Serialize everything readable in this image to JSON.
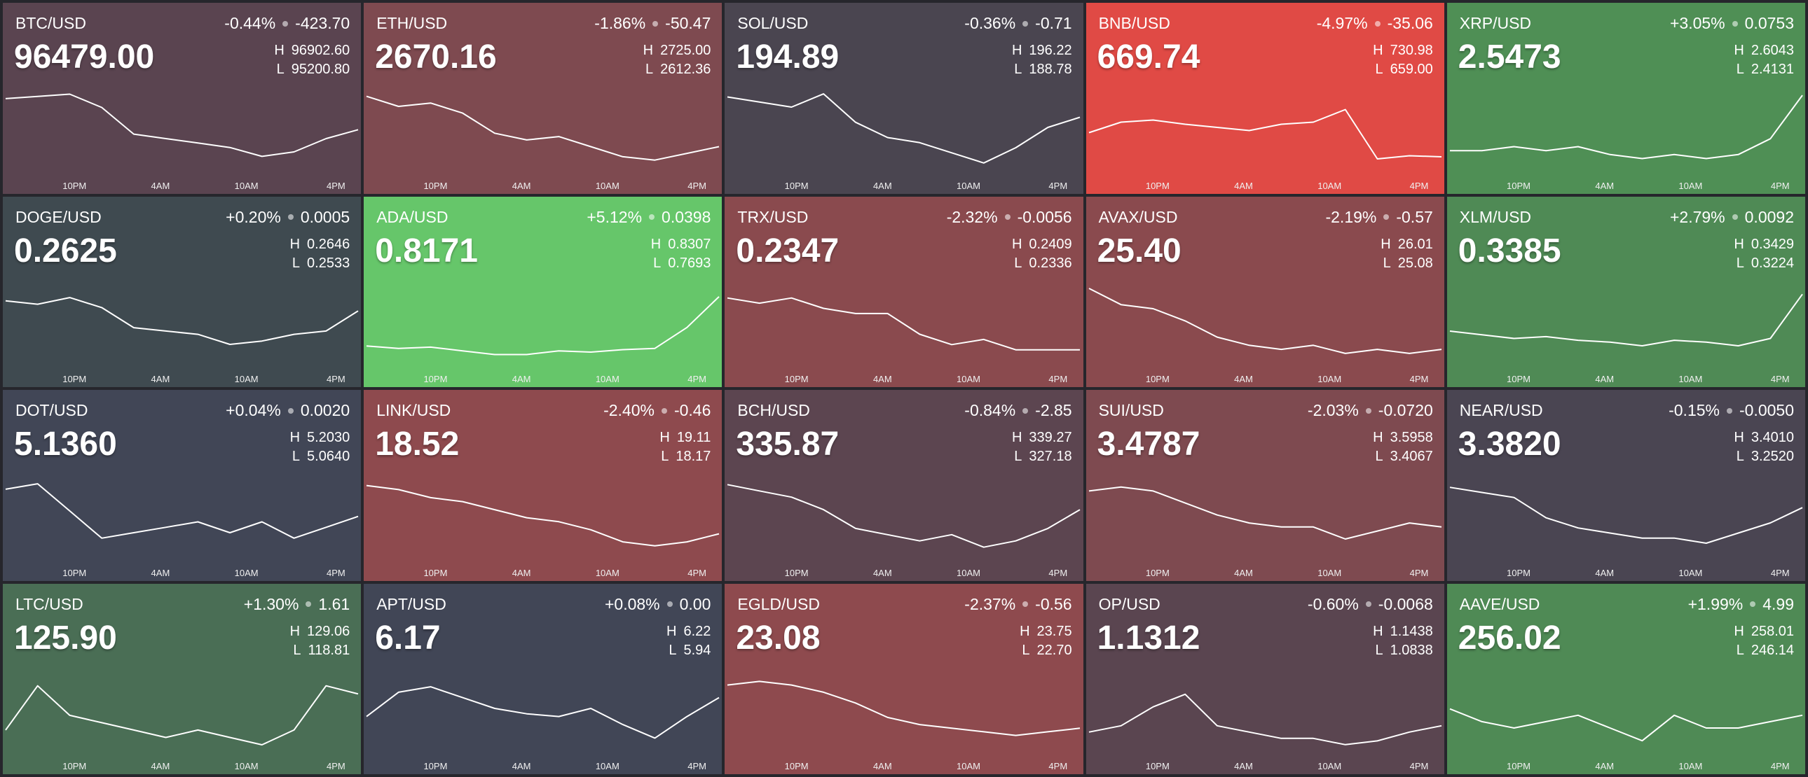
{
  "labels": {
    "high": "H",
    "low": "L"
  },
  "time_labels": [
    "10PM",
    "4AM",
    "10AM",
    "4PM"
  ],
  "tiles": [
    {
      "pair": "BTC/USD",
      "change_pct": "-0.44%",
      "change": "-423.70",
      "price": "96479.00",
      "high": "96902.60",
      "low": "95200.80",
      "color": "#5a4450",
      "sparkline": [
        96700,
        96750,
        96800,
        96500,
        95900,
        95800,
        95700,
        95600,
        95400,
        95500,
        95800,
        96000
      ]
    },
    {
      "pair": "ETH/USD",
      "change_pct": "-1.86%",
      "change": "-50.47",
      "price": "2670.16",
      "high": "2725.00",
      "low": "2612.36",
      "color": "#7e4a50",
      "sparkline": [
        2715,
        2700,
        2705,
        2690,
        2660,
        2650,
        2655,
        2640,
        2625,
        2620,
        2630,
        2640
      ]
    },
    {
      "pair": "SOL/USD",
      "change_pct": "-0.36%",
      "change": "-0.71",
      "price": "194.89",
      "high": "196.22",
      "low": "188.78",
      "color": "#4a4550",
      "sparkline": [
        195.5,
        195,
        194.5,
        195.8,
        193,
        191.5,
        191,
        190,
        189,
        190.5,
        192.5,
        193.5
      ]
    },
    {
      "pair": "BNB/USD",
      "change_pct": "-4.97%",
      "change": "-35.06",
      "price": "669.74",
      "high": "730.98",
      "low": "659.00",
      "color": "#e04a45",
      "sparkline": [
        690,
        700,
        702,
        698,
        695,
        692,
        698,
        700,
        712,
        665,
        668,
        667
      ]
    },
    {
      "pair": "XRP/USD",
      "change_pct": "+3.05%",
      "change": "0.0753",
      "price": "2.5473",
      "high": "2.6043",
      "low": "2.4131",
      "color": "#4f8f55",
      "sparkline": [
        2.45,
        2.45,
        2.46,
        2.45,
        2.46,
        2.44,
        2.43,
        2.44,
        2.43,
        2.44,
        2.48,
        2.59
      ]
    },
    {
      "pair": "DOGE/USD",
      "change_pct": "+0.20%",
      "change": "0.0005",
      "price": "0.2625",
      "high": "0.2646",
      "low": "0.2533",
      "color": "#3f4a50",
      "sparkline": [
        0.262,
        0.2615,
        0.2625,
        0.261,
        0.258,
        0.2575,
        0.257,
        0.2555,
        0.256,
        0.257,
        0.2575,
        0.2605
      ]
    },
    {
      "pair": "ADA/USD",
      "change_pct": "+5.12%",
      "change": "0.0398",
      "price": "0.8171",
      "high": "0.8307",
      "low": "0.7693",
      "color": "#66c66a",
      "sparkline": [
        0.78,
        0.778,
        0.779,
        0.776,
        0.773,
        0.773,
        0.776,
        0.775,
        0.777,
        0.778,
        0.795,
        0.82
      ]
    },
    {
      "pair": "TRX/USD",
      "change_pct": "-2.32%",
      "change": "-0.0056",
      "price": "0.2347",
      "high": "0.2409",
      "low": "0.2336",
      "color": "#8a4a4e",
      "sparkline": [
        0.2395,
        0.239,
        0.2395,
        0.2385,
        0.238,
        0.238,
        0.236,
        0.235,
        0.2355,
        0.2345,
        0.2345,
        0.2345
      ]
    },
    {
      "pair": "AVAX/USD",
      "change_pct": "-2.19%",
      "change": "-0.57",
      "price": "25.40",
      "high": "26.01",
      "low": "25.08",
      "color": "#8a4a4e",
      "sparkline": [
        25.95,
        25.75,
        25.7,
        25.55,
        25.35,
        25.25,
        25.2,
        25.25,
        25.15,
        25.2,
        25.15,
        25.2
      ]
    },
    {
      "pair": "XLM/USD",
      "change_pct": "+2.79%",
      "change": "0.0092",
      "price": "0.3385",
      "high": "0.3429",
      "low": "0.3224",
      "color": "#4f8a55",
      "sparkline": [
        0.33,
        0.329,
        0.328,
        0.3285,
        0.3275,
        0.327,
        0.326,
        0.3275,
        0.327,
        0.326,
        0.328,
        0.34
      ]
    },
    {
      "pair": "DOT/USD",
      "change_pct": "+0.04%",
      "change": "0.0020",
      "price": "5.1360",
      "high": "5.2030",
      "low": "5.0640",
      "color": "#414656",
      "sparkline": [
        5.18,
        5.19,
        5.14,
        5.09,
        5.1,
        5.11,
        5.12,
        5.1,
        5.12,
        5.09,
        5.11,
        5.13
      ]
    },
    {
      "pair": "LINK/USD",
      "change_pct": "-2.40%",
      "change": "-0.46",
      "price": "18.52",
      "high": "19.11",
      "low": "18.17",
      "color": "#8e4a4e",
      "sparkline": [
        19,
        18.95,
        18.85,
        18.8,
        18.7,
        18.6,
        18.55,
        18.45,
        18.3,
        18.25,
        18.3,
        18.4
      ]
    },
    {
      "pair": "BCH/USD",
      "change_pct": "-0.84%",
      "change": "-2.85",
      "price": "335.87",
      "high": "339.27",
      "low": "327.18",
      "color": "#5c4550",
      "sparkline": [
        338,
        337,
        336,
        334,
        331,
        330,
        329,
        330,
        328,
        329,
        331,
        334
      ]
    },
    {
      "pair": "SUI/USD",
      "change_pct": "-2.03%",
      "change": "-0.0720",
      "price": "3.4787",
      "high": "3.5958",
      "low": "3.4067",
      "color": "#7e4a50",
      "sparkline": [
        3.56,
        3.57,
        3.56,
        3.53,
        3.5,
        3.48,
        3.47,
        3.47,
        3.44,
        3.46,
        3.48,
        3.47
      ]
    },
    {
      "pair": "NEAR/USD",
      "change_pct": "-0.15%",
      "change": "-0.0050",
      "price": "3.3820",
      "high": "3.4010",
      "low": "3.2520",
      "color": "#4a4552",
      "sparkline": [
        3.38,
        3.37,
        3.36,
        3.32,
        3.3,
        3.29,
        3.28,
        3.28,
        3.27,
        3.29,
        3.31,
        3.34
      ]
    },
    {
      "pair": "LTC/USD",
      "change_pct": "+1.30%",
      "change": "1.61",
      "price": "125.90",
      "high": "129.06",
      "low": "118.81",
      "color": "#4a6e55",
      "sparkline": [
        121,
        127,
        123,
        122,
        121,
        120,
        121,
        120,
        119,
        121,
        127,
        125.9
      ]
    },
    {
      "pair": "APT/USD",
      "change_pct": "+0.08%",
      "change": "0.00",
      "price": "6.17",
      "high": "6.22",
      "low": "5.94",
      "color": "#414656",
      "sparkline": [
        6.05,
        6.14,
        6.16,
        6.12,
        6.08,
        6.06,
        6.05,
        6.08,
        6.02,
        5.97,
        6.05,
        6.12
      ]
    },
    {
      "pair": "EGLD/USD",
      "change_pct": "-2.37%",
      "change": "-0.56",
      "price": "23.08",
      "high": "23.75",
      "low": "22.70",
      "color": "#8e4a4e",
      "sparkline": [
        23.55,
        23.6,
        23.55,
        23.45,
        23.3,
        23.1,
        23,
        22.95,
        22.9,
        22.85,
        22.9,
        22.95
      ]
    },
    {
      "pair": "OP/USD",
      "change_pct": "-0.60%",
      "change": "-0.0068",
      "price": "1.1312",
      "high": "1.1438",
      "low": "1.0838",
      "color": "#5a4550",
      "sparkline": [
        1.095,
        1.1,
        1.115,
        1.125,
        1.1,
        1.095,
        1.09,
        1.09,
        1.085,
        1.088,
        1.095,
        1.1
      ]
    },
    {
      "pair": "AAVE/USD",
      "change_pct": "+1.99%",
      "change": "4.99",
      "price": "256.02",
      "high": "258.01",
      "low": "246.14",
      "color": "#4f8a55",
      "sparkline": [
        252,
        250,
        249,
        250,
        251,
        249,
        247,
        251,
        249,
        249,
        250,
        251
      ]
    }
  ]
}
